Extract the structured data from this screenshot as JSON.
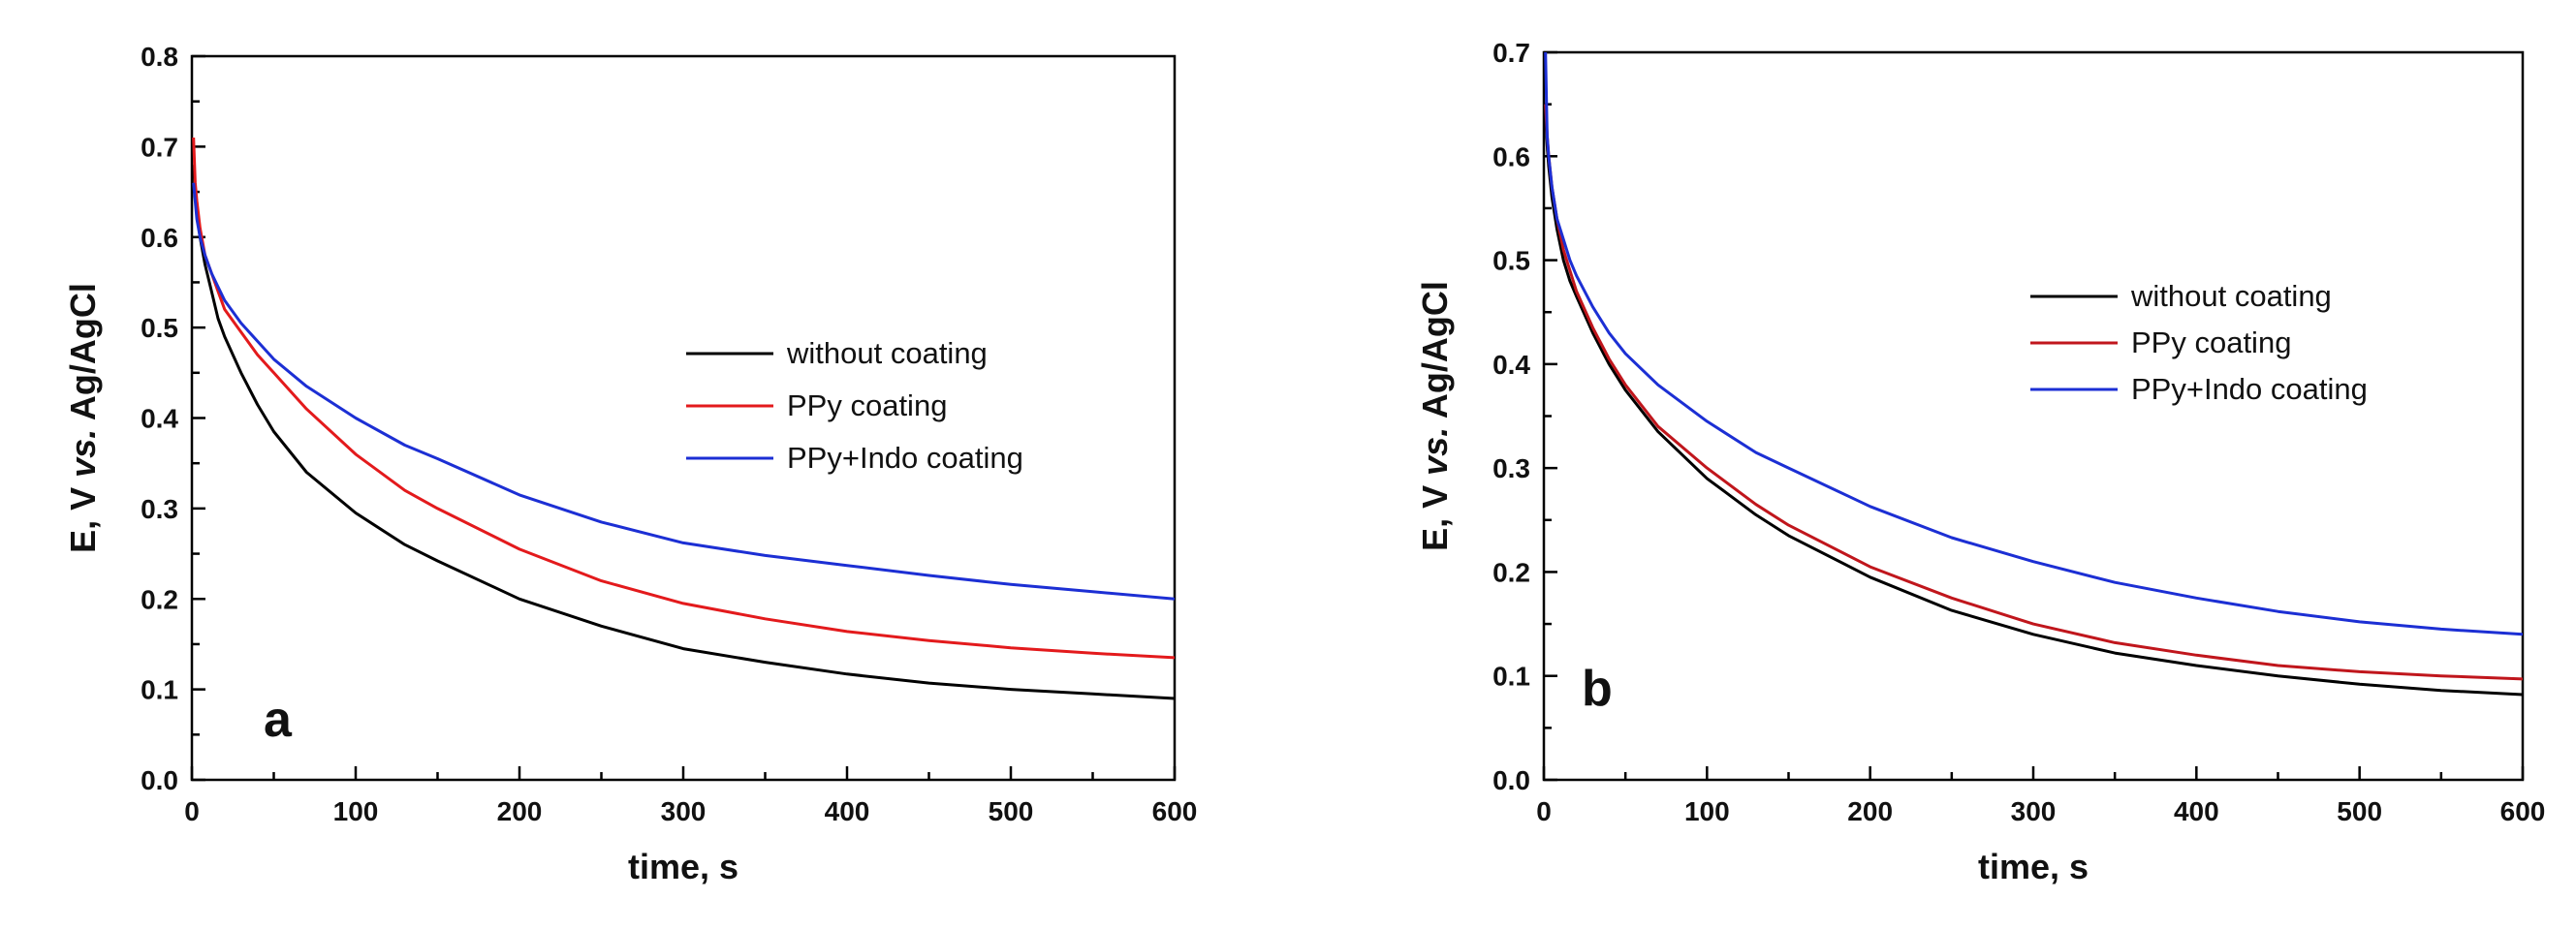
{
  "chart_data": [
    {
      "type": "line",
      "panel_label": "a",
      "xlabel": "time, s",
      "ylabel_parts": [
        "E, V ",
        "vs.",
        " Ag/AgCl"
      ],
      "xlim": [
        0,
        600
      ],
      "ylim": [
        0.0,
        0.8
      ],
      "xticks": [
        "0",
        "100",
        "200",
        "300",
        "400",
        "500",
        "600"
      ],
      "yticks": [
        "0.0",
        "0.1",
        "0.2",
        "0.3",
        "0.4",
        "0.5",
        "0.6",
        "0.7",
        "0.8"
      ],
      "grid": false,
      "legend_position": "center-right",
      "series": [
        {
          "name": "without coating",
          "color": "#000000",
          "x": [
            1,
            2,
            3,
            5,
            8,
            12,
            16,
            20,
            30,
            40,
            50,
            70,
            100,
            130,
            150,
            200,
            250,
            300,
            350,
            400,
            450,
            500,
            550,
            600
          ],
          "y": [
            0.68,
            0.65,
            0.63,
            0.6,
            0.57,
            0.54,
            0.51,
            0.49,
            0.45,
            0.415,
            0.385,
            0.34,
            0.295,
            0.26,
            0.242,
            0.2,
            0.17,
            0.145,
            0.13,
            0.117,
            0.107,
            0.1,
            0.095,
            0.09
          ]
        },
        {
          "name": "PPy coating",
          "color": "#e31a1c",
          "x": [
            1,
            2,
            3,
            5,
            8,
            12,
            16,
            20,
            30,
            40,
            50,
            70,
            100,
            130,
            150,
            200,
            250,
            300,
            350,
            400,
            450,
            500,
            550,
            600
          ],
          "y": [
            0.71,
            0.66,
            0.64,
            0.61,
            0.58,
            0.56,
            0.54,
            0.52,
            0.495,
            0.47,
            0.45,
            0.41,
            0.36,
            0.32,
            0.3,
            0.255,
            0.22,
            0.195,
            0.178,
            0.164,
            0.154,
            0.146,
            0.14,
            0.135
          ]
        },
        {
          "name": "PPy+Indo coating",
          "color": "#1c2fd4",
          "x": [
            1,
            2,
            3,
            5,
            8,
            12,
            16,
            20,
            30,
            40,
            50,
            70,
            100,
            130,
            150,
            200,
            250,
            300,
            350,
            400,
            450,
            500,
            550,
            600
          ],
          "y": [
            0.66,
            0.64,
            0.62,
            0.6,
            0.58,
            0.56,
            0.545,
            0.53,
            0.505,
            0.485,
            0.465,
            0.435,
            0.4,
            0.37,
            0.355,
            0.315,
            0.285,
            0.262,
            0.248,
            0.237,
            0.226,
            0.216,
            0.208,
            0.2
          ]
        }
      ]
    },
    {
      "type": "line",
      "panel_label": "b",
      "xlabel": "time, s",
      "ylabel_parts": [
        "E, V ",
        "vs.",
        " Ag/AgCl"
      ],
      "xlim": [
        0,
        600
      ],
      "ylim": [
        0.0,
        0.7
      ],
      "xticks": [
        "0",
        "100",
        "200",
        "300",
        "400",
        "500",
        "600"
      ],
      "yticks": [
        "0.0",
        "0.1",
        "0.2",
        "0.3",
        "0.4",
        "0.5",
        "0.6",
        "0.7"
      ],
      "grid": false,
      "legend_position": "center-right",
      "series": [
        {
          "name": "without coating",
          "color": "#000000",
          "x": [
            1,
            2,
            3,
            5,
            8,
            12,
            16,
            20,
            30,
            40,
            50,
            70,
            100,
            130,
            150,
            200,
            250,
            300,
            350,
            400,
            450,
            500,
            550,
            600
          ],
          "y": [
            0.64,
            0.61,
            0.59,
            0.56,
            0.53,
            0.5,
            0.48,
            0.465,
            0.43,
            0.4,
            0.375,
            0.335,
            0.29,
            0.255,
            0.235,
            0.195,
            0.163,
            0.14,
            0.122,
            0.11,
            0.1,
            0.092,
            0.086,
            0.082
          ]
        },
        {
          "name": "PPy coating",
          "color": "#c0161c",
          "x": [
            1,
            2,
            3,
            5,
            8,
            12,
            16,
            20,
            30,
            40,
            50,
            70,
            100,
            130,
            150,
            200,
            250,
            300,
            350,
            400,
            450,
            500,
            550,
            600
          ],
          "y": [
            0.65,
            0.62,
            0.6,
            0.57,
            0.54,
            0.51,
            0.49,
            0.47,
            0.435,
            0.405,
            0.38,
            0.34,
            0.3,
            0.265,
            0.245,
            0.205,
            0.175,
            0.15,
            0.132,
            0.12,
            0.11,
            0.104,
            0.1,
            0.097
          ]
        },
        {
          "name": "PPy+Indo coating",
          "color": "#1c2fd4",
          "x": [
            1,
            2,
            3,
            5,
            8,
            12,
            16,
            20,
            30,
            40,
            50,
            70,
            100,
            130,
            150,
            200,
            250,
            300,
            350,
            400,
            450,
            500,
            550,
            600
          ],
          "y": [
            0.7,
            0.62,
            0.6,
            0.57,
            0.54,
            0.52,
            0.5,
            0.485,
            0.455,
            0.43,
            0.41,
            0.38,
            0.345,
            0.315,
            0.3,
            0.263,
            0.233,
            0.21,
            0.19,
            0.175,
            0.162,
            0.152,
            0.145,
            0.14
          ]
        }
      ]
    }
  ]
}
